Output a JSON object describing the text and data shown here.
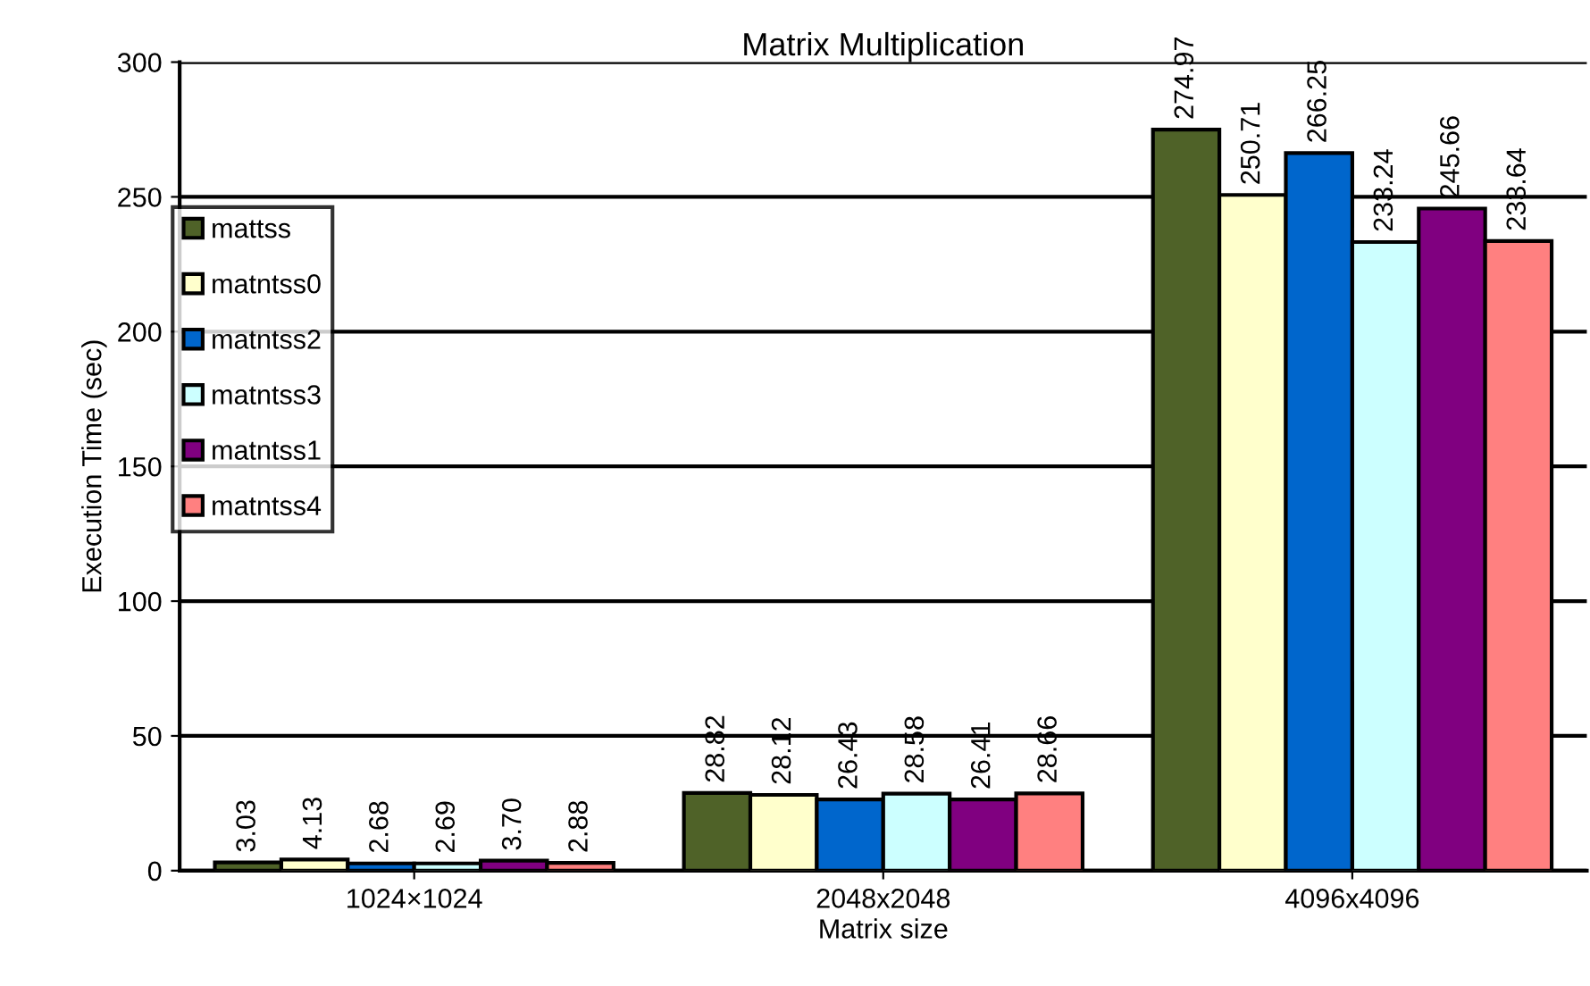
{
  "chart_data": {
    "type": "bar",
    "title": "Matrix Multiplication",
    "xlabel": "Matrix size",
    "ylabel": "Execution Time (sec)",
    "categories": [
      "1024×1024",
      "2048x2048",
      "4096x4096"
    ],
    "series": [
      {
        "name": "mattss",
        "color": "#4f6228",
        "values": [
          3.03,
          28.82,
          274.97
        ],
        "value_labels": [
          "3.03",
          "28.82",
          "274.97"
        ]
      },
      {
        "name": "matntss0",
        "color": "#ffffcc",
        "values": [
          4.13,
          28.12,
          250.71
        ],
        "value_labels": [
          "4.13",
          "28.12",
          "250.71"
        ]
      },
      {
        "name": "matntss2",
        "color": "#0066cc",
        "values": [
          2.68,
          26.43,
          266.25
        ],
        "value_labels": [
          "2.68",
          "26.43",
          "266.25"
        ]
      },
      {
        "name": "matntss3",
        "color": "#ccffff",
        "values": [
          2.69,
          28.58,
          233.24
        ],
        "value_labels": [
          "2.69",
          "28.58",
          "233.24"
        ]
      },
      {
        "name": "matntss1",
        "color": "#800080",
        "values": [
          3.7,
          26.41,
          245.66
        ],
        "value_labels": [
          "3.70",
          "26.41",
          "245.66"
        ]
      },
      {
        "name": "matntss4",
        "color": "#ff8080",
        "values": [
          2.88,
          28.66,
          233.64
        ],
        "value_labels": [
          "2.88",
          "28.66",
          "233.64"
        ]
      }
    ],
    "ylim": [
      0,
      300
    ],
    "yticks": [
      0,
      50,
      100,
      150,
      200,
      250,
      300
    ],
    "grid": "y",
    "legend": "left"
  }
}
